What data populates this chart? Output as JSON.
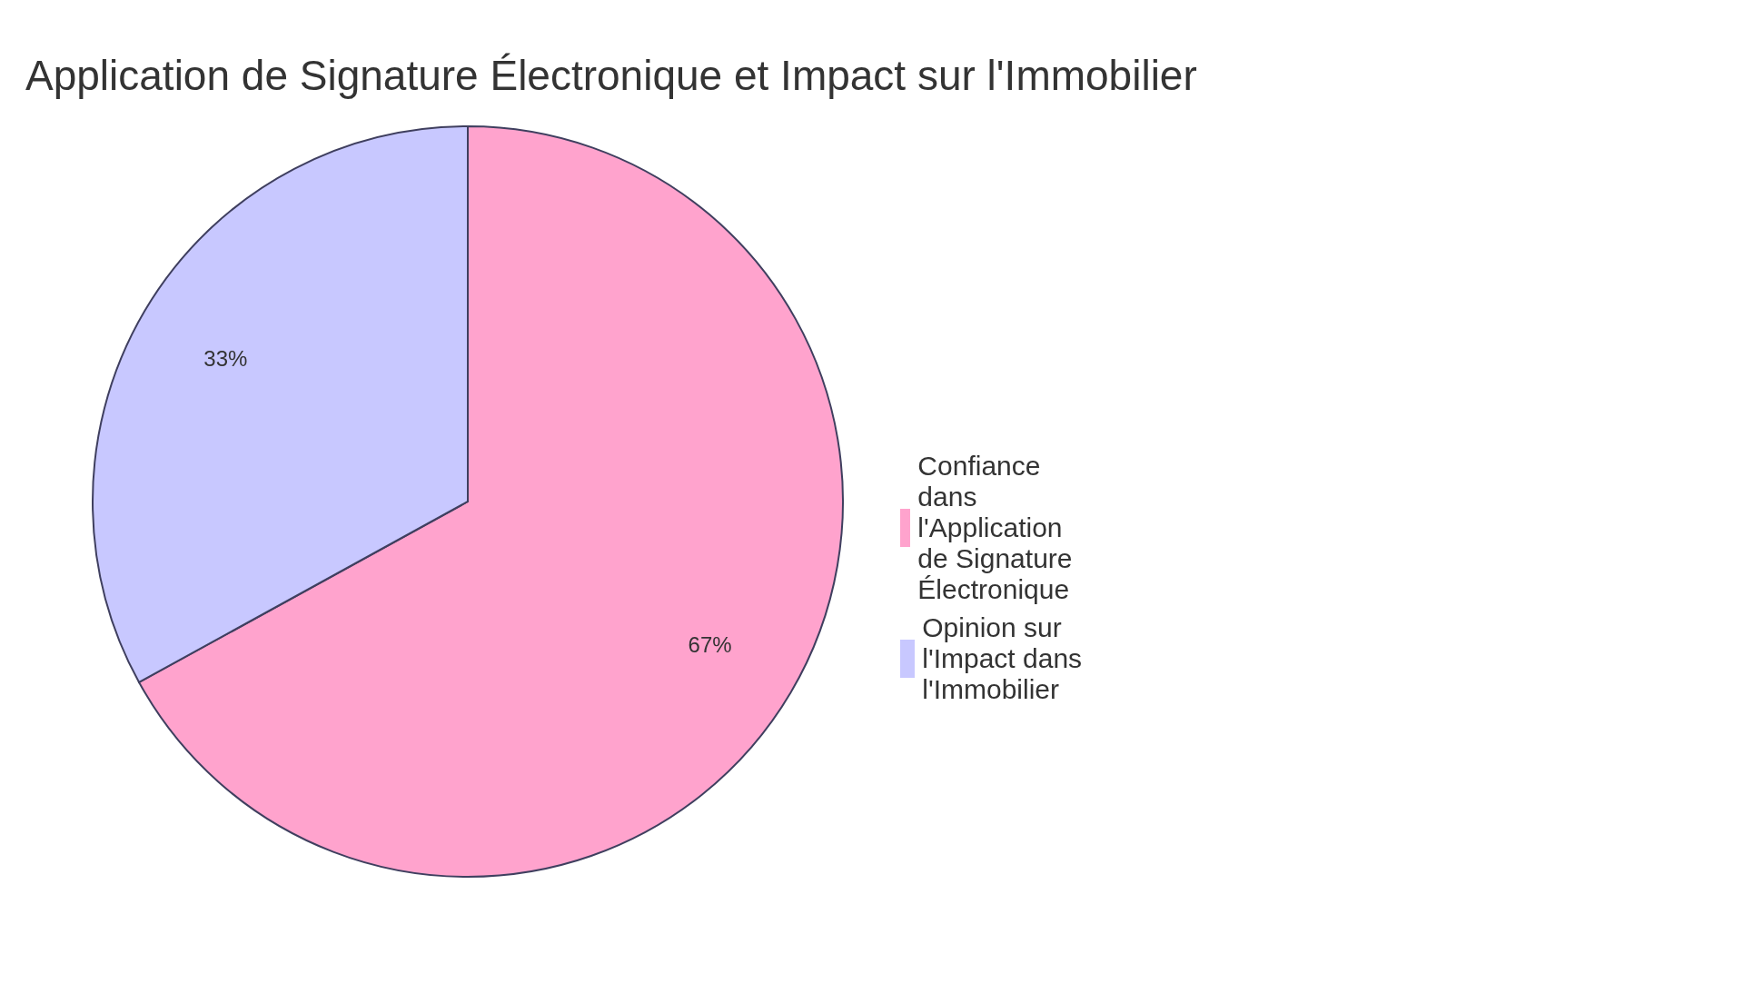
{
  "chart_data": {
    "type": "pie",
    "title": "Application de Signature Électronique et Impact sur l'Immobilier",
    "categories": [
      "Confiance dans l'Application de Signature Électronique",
      "Opinion sur l'Impact dans l'Immobilier"
    ],
    "values": [
      67,
      33
    ],
    "colors": [
      "#ffa3cd",
      "#c8c8ff"
    ],
    "value_labels": [
      "67%",
      "33%"
    ],
    "legend": "right"
  }
}
